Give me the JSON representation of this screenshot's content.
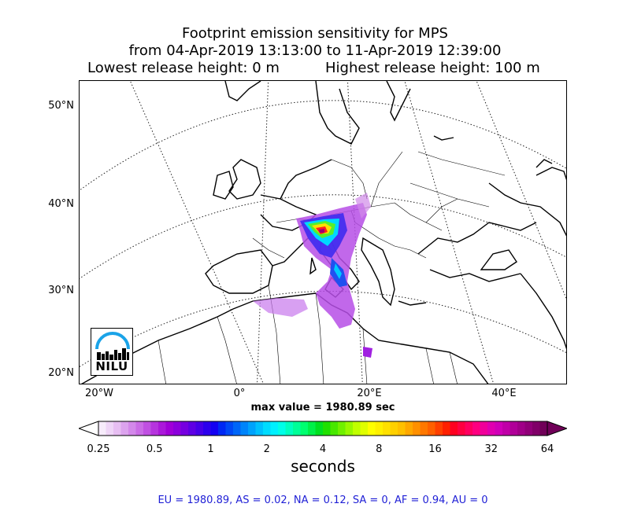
{
  "title": {
    "line1": "Footprint emission sensitivity for MPS",
    "line2": "from 04-Apr-2019 13:13:00 to 11-Apr-2019 12:39:00",
    "line3_left": "Lowest release height: 0 m",
    "line3_right": "Highest release height: 100 m"
  },
  "map": {
    "lat_labels": [
      "50°N",
      "40°N",
      "30°N",
      "20°N"
    ],
    "lon_labels": [
      "20°W",
      "0°",
      "20°E",
      "40°E"
    ],
    "logo_text": "NILU"
  },
  "max_value_text": "max value = 1980.89 sec",
  "colorbar": {
    "tick_labels": [
      "0.25",
      "0.5",
      "1",
      "2",
      "4",
      "8",
      "16",
      "32",
      "64"
    ],
    "units": "seconds",
    "colors": [
      "#f7ecfb",
      "#efd5f7",
      "#e7bef2",
      "#dca3ee",
      "#d388ea",
      "#ca6ce6",
      "#c050e2",
      "#b634de",
      "#ab18da",
      "#a000d8",
      "#8c00dc",
      "#7600e0",
      "#5e00e4",
      "#4600e8",
      "#2c00ed",
      "#1400f2",
      "#0028f4",
      "#0048f6",
      "#0066f8",
      "#0084fa",
      "#00a2fc",
      "#00c0fe",
      "#00dcff",
      "#00f0ff",
      "#00ffe8",
      "#00ffc0",
      "#00ff98",
      "#00ff70",
      "#00f048",
      "#00e020",
      "#20e000",
      "#48e800",
      "#70f000",
      "#98f800",
      "#c0ff00",
      "#e0ff00",
      "#ffff00",
      "#fff000",
      "#ffe000",
      "#ffd000",
      "#ffc000",
      "#ffa800",
      "#ff9000",
      "#ff7800",
      "#ff6000",
      "#ff4000",
      "#ff2000",
      "#ff0020",
      "#ff0040",
      "#ff0060",
      "#ff0080",
      "#f0009a",
      "#e000b0",
      "#d000b8",
      "#c000a8",
      "#b00098",
      "#a00088",
      "#900078",
      "#800068",
      "#700058"
    ]
  },
  "summary": "EU = 1980.89,  AS = 0.02,  NA = 0.12,  SA = 0,  AF = 0.94,  AU = 0"
}
